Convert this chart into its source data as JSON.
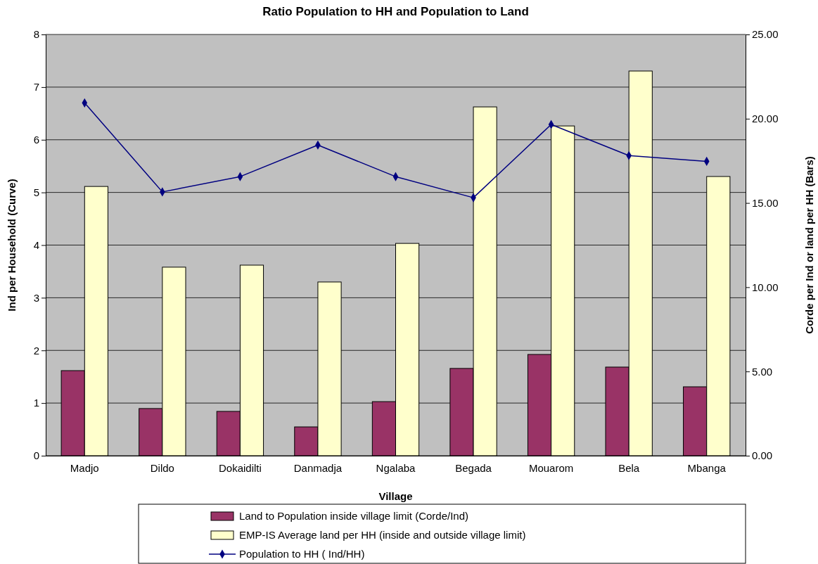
{
  "chart_data": {
    "type": "bar",
    "title": "Ratio Population to HH and Population to Land",
    "xlabel": "Village",
    "ylabel": "Ind per Household (Curve)",
    "y2label": "Corde per Ind or land per HH (Bars)",
    "categories": [
      "Madjo",
      "Dildo",
      "Dokaidilti",
      "Danmadja",
      "Ngalaba",
      "Begada",
      "Mouarom",
      "Bela",
      "Mbanga"
    ],
    "series": [
      {
        "name": "Land to Population inside village limit (Corde/Ind)",
        "color": "#993366",
        "axis": "y2",
        "values": [
          5.05,
          2.8,
          2.63,
          1.71,
          3.21,
          5.18,
          6.01,
          5.26,
          4.09
        ]
      },
      {
        "name": "EMP-IS Average land per HH (inside and outside village limit)",
        "color": "#ffffcc",
        "axis": "y2",
        "values": [
          15.98,
          11.19,
          11.31,
          10.31,
          12.6,
          20.7,
          19.57,
          22.83,
          16.57
        ]
      },
      {
        "name": "Population to HH ( Ind/HH)",
        "type": "line",
        "color": "#000080",
        "marker": "diamond",
        "values": [
          6.7,
          5.01,
          5.3,
          5.9,
          5.3,
          4.9,
          6.29,
          5.7,
          5.59
        ]
      }
    ],
    "ylim": [
      0,
      8
    ],
    "yticks": [
      0,
      1,
      2,
      3,
      4,
      5,
      6,
      7,
      8
    ],
    "y2lim": [
      0,
      25
    ],
    "y2ticks": [
      {
        "value": 0,
        "label": "0.00"
      },
      {
        "value": 5,
        "label": "5.00"
      },
      {
        "value": 10,
        "label": "10.00"
      },
      {
        "value": 15,
        "label": "15.00"
      },
      {
        "value": 20,
        "label": "20.00"
      },
      {
        "value": 25,
        "label": "25.00"
      }
    ],
    "grid": "y",
    "legend": "bottom"
  }
}
